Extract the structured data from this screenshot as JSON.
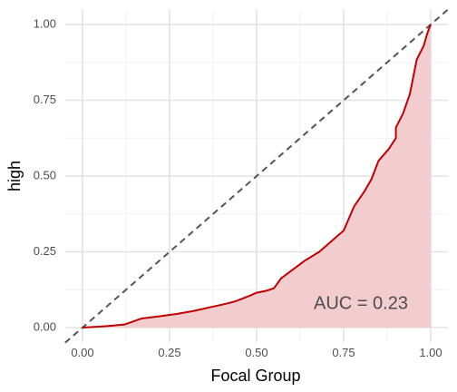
{
  "chart_data": {
    "type": "area",
    "xlabel": "Focal Group",
    "ylabel": "high",
    "xlim": [
      0,
      1
    ],
    "ylim": [
      0,
      1
    ],
    "x_ticks": [
      "0.00",
      "0.25",
      "0.50",
      "0.75",
      "1.00"
    ],
    "y_ticks": [
      "0.00",
      "0.25",
      "0.50",
      "0.75",
      "1.00"
    ],
    "x_tick_values": [
      0,
      0.25,
      0.5,
      0.75,
      1
    ],
    "y_tick_values": [
      0,
      0.25,
      0.5,
      0.75,
      1
    ],
    "grid": true,
    "annotation": "AUC = 0.23",
    "reference_line": {
      "style": "dashed",
      "from": [
        0,
        0
      ],
      "to": [
        1,
        1
      ],
      "color": "#555555"
    },
    "curve_color": "#c00000",
    "fill_color": "#f2c9cc",
    "series": [
      {
        "x": [
          0,
          0.03,
          0.07,
          0.12,
          0.17,
          0.22,
          0.27,
          0.32,
          0.37,
          0.41,
          0.44,
          0.48,
          0.5,
          0.53,
          0.55,
          0.57,
          0.6,
          0.64,
          0.68,
          0.72,
          0.75,
          0.78,
          0.81,
          0.83,
          0.85,
          0.88,
          0.9,
          0.9,
          0.92,
          0.94,
          0.96,
          0.98,
          0.99,
          1.0
        ],
        "y": [
          0,
          0.002,
          0.005,
          0.01,
          0.03,
          0.037,
          0.045,
          0.055,
          0.068,
          0.078,
          0.087,
          0.105,
          0.115,
          0.122,
          0.13,
          0.162,
          0.188,
          0.222,
          0.25,
          0.29,
          0.32,
          0.4,
          0.45,
          0.49,
          0.55,
          0.59,
          0.625,
          0.66,
          0.705,
          0.77,
          0.885,
          0.93,
          0.97,
          1.0
        ]
      }
    ]
  }
}
